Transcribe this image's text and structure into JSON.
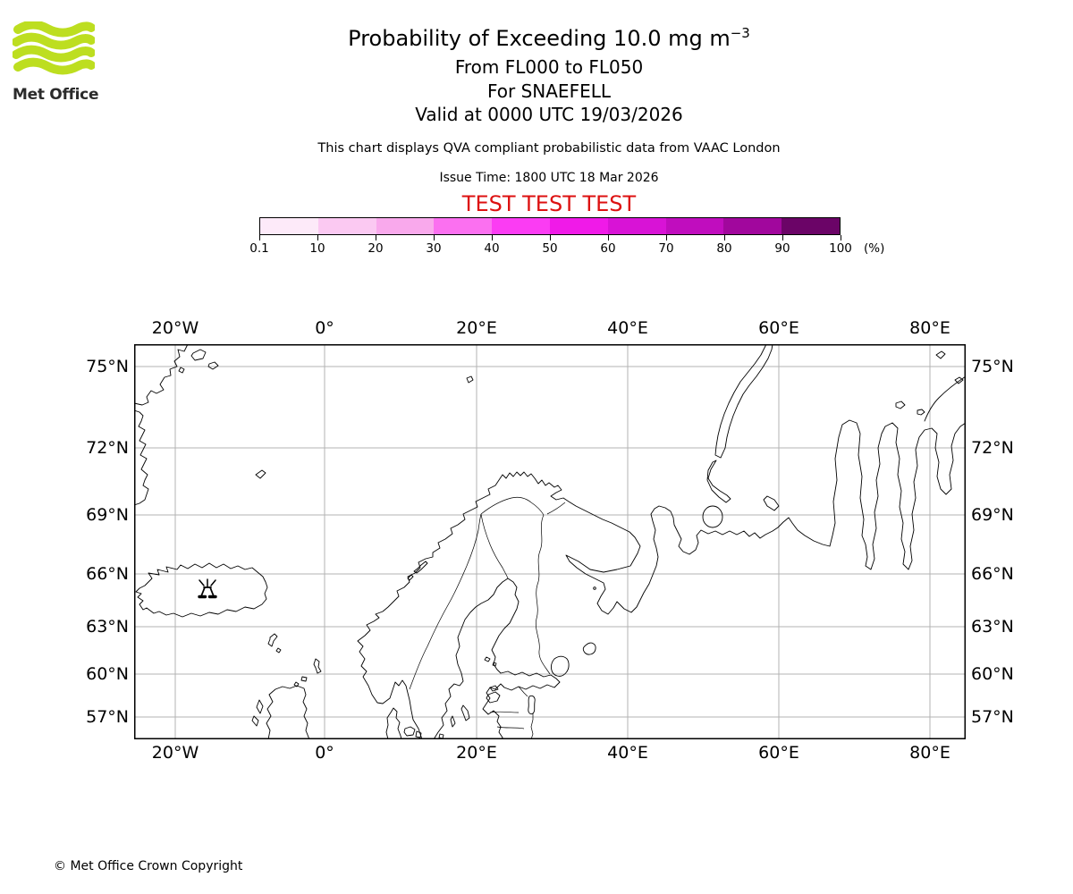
{
  "brand": {
    "name": "Met Office",
    "logo_green": "#bdde20",
    "text_color": "#2b2b2b"
  },
  "header": {
    "title_prefix": "Probability of Exceeding 10.0 mg m",
    "title_superscript": "−3",
    "subtitles": [
      "From FL000 to FL050",
      "For SNAEFELL",
      "Valid at 0000 UTC 19/03/2026"
    ],
    "note": "This chart displays QVA compliant probabilistic data from VAAC London",
    "issue_time": "Issue Time: 1800 UTC 18 Mar 2026",
    "test_banner": "TEST TEST TEST",
    "test_banner_color": "#dd1111"
  },
  "colorbar": {
    "tick_labels": [
      "0.1",
      "10",
      "20",
      "30",
      "40",
      "50",
      "60",
      "70",
      "80",
      "90",
      "100"
    ],
    "unit_label": "(%)",
    "segment_colors": [
      "#fdeaf9",
      "#fbc9f2",
      "#f9a9ec",
      "#fb70f0",
      "#fb3cf3",
      "#f01ae8",
      "#d813d6",
      "#c00dbe",
      "#a1079d",
      "#6b0467"
    ]
  },
  "map": {
    "x_tick_labels": [
      "20°W",
      "0°",
      "20°E",
      "40°E",
      "60°E",
      "80°E"
    ],
    "y_tick_labels": [
      "75°N",
      "72°N",
      "69°N",
      "66°N",
      "63°N",
      "60°N",
      "57°N"
    ],
    "marker": "volcano marker (SNAEFELL, Iceland)"
  },
  "footer": {
    "copyright": "© Met Office Crown Copyright"
  },
  "chart_data": {
    "type": "map",
    "title": "Probability of Exceeding 10.0 mg m^-3",
    "subtitle": "From FL000 to FL050, For SNAEFELL, Valid at 0000 UTC 19/03/2026",
    "source_note": "QVA compliant probabilistic data from VAAC London",
    "issue_time": "1800 UTC 18 Mar 2026",
    "status": "TEST TEST TEST",
    "legend": {
      "unit": "%",
      "scale_breaks": [
        0.1,
        10,
        20,
        30,
        40,
        50,
        60,
        70,
        80,
        90,
        100
      ],
      "colors": [
        "#fdeaf9",
        "#fbc9f2",
        "#f9a9ec",
        "#fb70f0",
        "#fb3cf3",
        "#f01ae8",
        "#d813d6",
        "#c00dbe",
        "#a1079d",
        "#6b0467"
      ]
    },
    "map_extent": {
      "lon": [
        -25.1,
        84.6
      ],
      "lat": [
        55.4,
        75.8
      ]
    },
    "x_gridlines_deg": [
      -20,
      0,
      20,
      40,
      60,
      80
    ],
    "y_gridlines_deg": [
      75,
      72,
      69,
      66,
      63,
      60,
      57
    ],
    "volcano_marker_approx_lon_lat": [
      -15.5,
      65.1
    ],
    "shaded_probability_regions": "none visible (no area at or above 0.1%)"
  }
}
